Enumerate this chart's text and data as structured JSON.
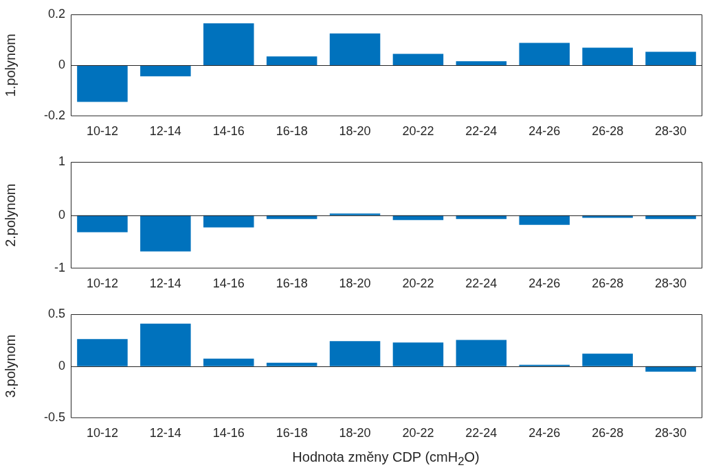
{
  "chart_data": [
    {
      "type": "bar",
      "ylabel": "1.polynom",
      "categories": [
        "10-12",
        "12-14",
        "14-16",
        "16-18",
        "18-20",
        "20-22",
        "22-24",
        "24-26",
        "26-28",
        "28-30"
      ],
      "color": "#0072bd",
      "values": [
        -0.144,
        -0.043,
        0.165,
        0.035,
        0.125,
        0.045,
        0.016,
        0.088,
        0.069,
        0.053
      ],
      "ylim": [
        -0.2,
        0.2
      ],
      "yticks": [
        -0.2,
        0,
        0.2
      ],
      "legend": false
    },
    {
      "type": "bar",
      "ylabel": "2.polynom",
      "categories": [
        "10-12",
        "12-14",
        "14-16",
        "16-18",
        "18-20",
        "20-22",
        "22-24",
        "24-26",
        "26-28",
        "28-30"
      ],
      "color": "#0072bd",
      "values": [
        -0.32,
        -0.68,
        -0.23,
        -0.07,
        0.03,
        -0.09,
        -0.07,
        -0.18,
        -0.05,
        -0.07
      ],
      "ylim": [
        -1,
        1
      ],
      "yticks": [
        -1,
        0,
        1
      ],
      "legend": false
    },
    {
      "type": "bar",
      "ylabel": "3.polynom",
      "xlabel": "Hodnota změny CDP (cmH$_{2}$O)",
      "categories": [
        "10-12",
        "12-14",
        "14-16",
        "16-18",
        "18-20",
        "20-22",
        "22-24",
        "24-26",
        "26-28",
        "28-30"
      ],
      "color": "#0072bd",
      "values": [
        0.26,
        0.41,
        0.073,
        0.033,
        0.24,
        0.227,
        0.253,
        0.013,
        0.12,
        -0.053
      ],
      "ylim": [
        -0.5,
        0.5
      ],
      "yticks": [
        -0.5,
        0,
        0.5
      ],
      "legend": false
    }
  ]
}
